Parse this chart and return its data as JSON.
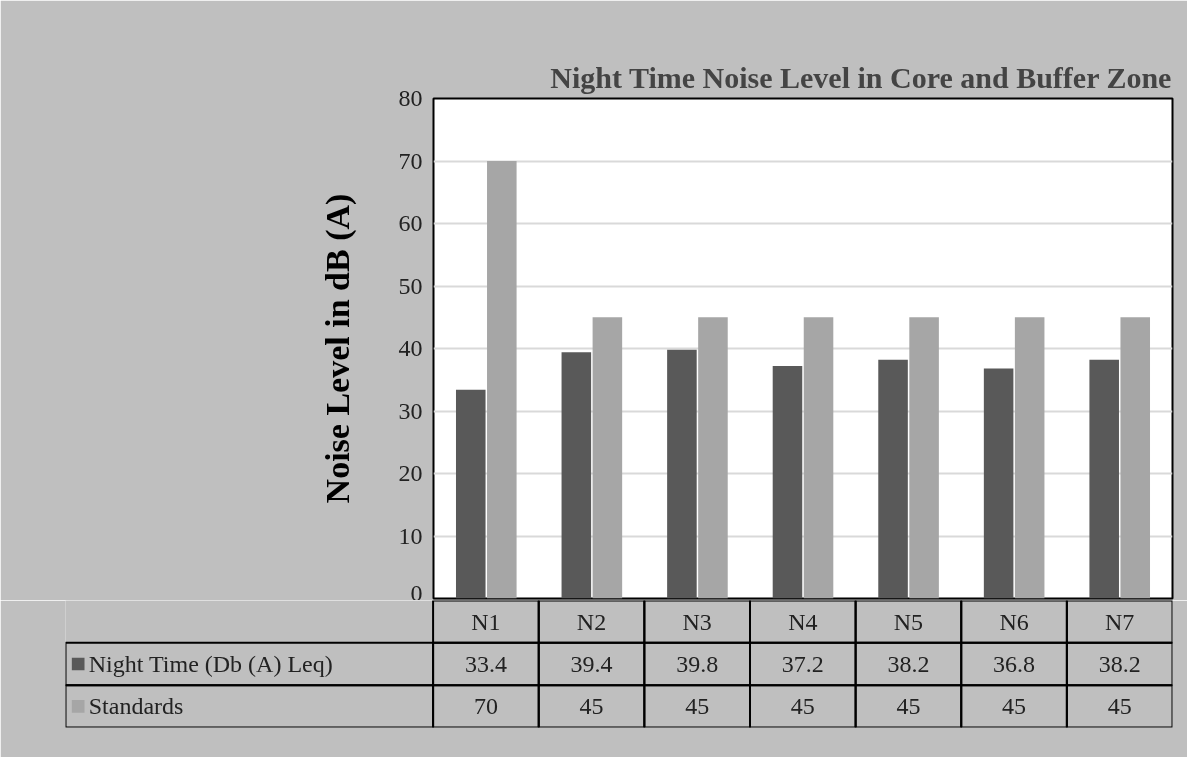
{
  "chart_data": {
    "type": "bar",
    "title": "Night Time Noise Level in Core and Buffer Zone",
    "ylabel": "Noise Level in dB (A)",
    "categories": [
      "N1",
      "N2",
      "N3",
      "N4",
      "N5",
      "N6",
      "N7"
    ],
    "series": [
      {
        "name": "Night Time (Db (A) Leq)",
        "color": "#595959",
        "values": [
          33.4,
          39.4,
          39.8,
          37.2,
          38.2,
          36.8,
          38.2
        ]
      },
      {
        "name": "Standards",
        "color": "#a6a6a6",
        "values": [
          70,
          45,
          45,
          45,
          45,
          45,
          45
        ]
      }
    ],
    "ylim": [
      0,
      80
    ],
    "yticks": [
      0,
      10,
      20,
      30,
      40,
      50,
      60,
      70,
      80
    ],
    "grid": "y",
    "legend": "bottom",
    "data_labels": true
  }
}
